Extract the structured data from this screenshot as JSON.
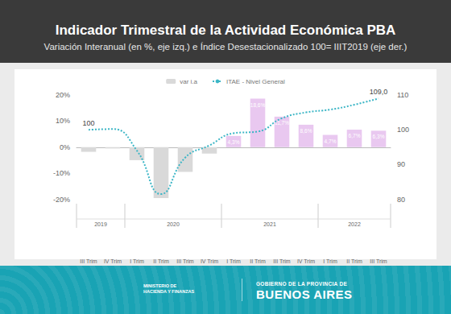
{
  "chart_data": {
    "type": "bar",
    "title": "Indicador Trimestral de la Actividad Económica PBA",
    "subtitle": "Variación Interanual (en %, eje izq.) e Índice Desestacionalizado 100= IIIT2019 (eje der.)",
    "categories": [
      "III Trim",
      "IV Trim",
      "I Trim",
      "II Trim",
      "III Trim",
      "IV Trim",
      "I Trim",
      "II Trim",
      "III Trim",
      "IV Trim",
      "I Trim",
      "II Trim",
      "III Trim"
    ],
    "years": [
      "2019",
      "2019",
      "2020",
      "2020",
      "2020",
      "2020",
      "2021",
      "2021",
      "2021",
      "2021",
      "2022",
      "2022",
      "2022"
    ],
    "series": [
      {
        "name": "var i.a",
        "type": "bar",
        "colors": [
          "#d9d9d9",
          "#d9d9d9",
          "#d9d9d9",
          "#d9d9d9",
          "#d9d9d9",
          "#d9d9d9",
          "#e9c8f0",
          "#e9c8f0",
          "#e9c8f0",
          "#e9c8f0",
          "#e9c8f0",
          "#e9c8f0",
          "#e9c8f0"
        ],
        "values": [
          -1.8,
          -0.5,
          -5.0,
          -19.5,
          -9.5,
          -2.5,
          4.3,
          18.6,
          11.7,
          8.6,
          4.7,
          6.7,
          6.3
        ],
        "value_labels": [
          null,
          null,
          null,
          null,
          null,
          null,
          "4,3%",
          "18,6%",
          "11,7%",
          "8,6%",
          "4,7%",
          "6,7%",
          "6,3%"
        ]
      },
      {
        "name": "ITAE - Nivel General",
        "type": "line",
        "axis": "y2",
        "color": "#3cb6c6",
        "line_style": "dotted",
        "values": [
          100,
          100.2,
          94.0,
          81.5,
          92.0,
          95.5,
          99.0,
          99.5,
          103.3,
          105.0,
          105.8,
          107.2,
          109.0
        ],
        "value_labels": [
          "100",
          null,
          null,
          null,
          null,
          null,
          null,
          null,
          null,
          null,
          null,
          null,
          "109,0"
        ]
      }
    ],
    "ylim": [
      -20,
      20
    ],
    "yticks": [
      {
        "value": -20,
        "label": "-20%"
      },
      {
        "value": -10,
        "label": "-10%"
      },
      {
        "value": 0,
        "label": "0%"
      },
      {
        "value": 10,
        "label": "10%"
      },
      {
        "value": 20,
        "label": "20%"
      }
    ],
    "y2lim": [
      80,
      110
    ],
    "y2ticks": [
      80,
      90,
      100,
      110
    ],
    "grid": false,
    "legend": "top",
    "data_labels": true
  },
  "footer": {
    "ministry": "MINISTERIO DE HACIENDA Y FINANZAS",
    "government_line": "GOBIERNO DE LA PROVINCIA DE",
    "province": "BUENOS AIRES"
  }
}
